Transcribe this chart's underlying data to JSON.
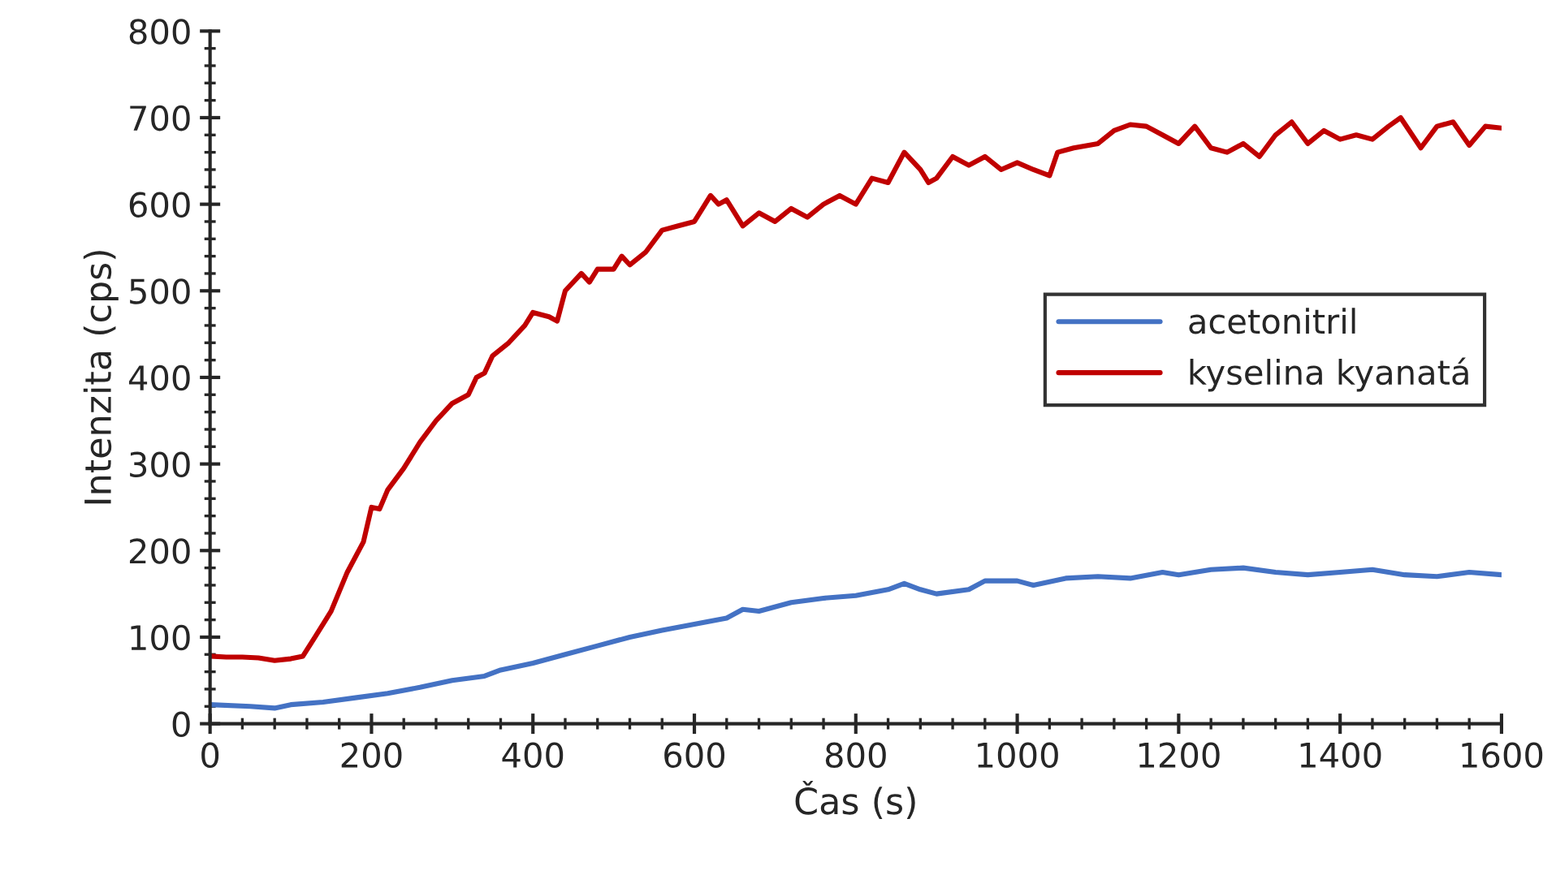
{
  "chart_data": {
    "type": "line",
    "xlabel": "Čas (s)",
    "ylabel": "Intenzita (cps)",
    "xlim": [
      0,
      1600
    ],
    "xticks": [
      0,
      200,
      400,
      600,
      800,
      1000,
      1200,
      1400,
      1600
    ],
    "ylim": [
      0,
      800
    ],
    "yticks": [
      0,
      100,
      200,
      300,
      400,
      500,
      600,
      700,
      800
    ],
    "grid": false,
    "legend": "right",
    "marker": "none",
    "line_style": "solid",
    "series": [
      {
        "name": "acetonitril",
        "color": "#4472c4",
        "x": [
          0,
          50,
          80,
          100,
          140,
          180,
          220,
          260,
          300,
          340,
          360,
          400,
          440,
          480,
          520,
          560,
          600,
          640,
          660,
          680,
          720,
          760,
          800,
          840,
          860,
          880,
          900,
          940,
          960,
          1000,
          1020,
          1060,
          1100,
          1140,
          1180,
          1200,
          1240,
          1280,
          1320,
          1360,
          1400,
          1440,
          1480,
          1520,
          1560,
          1600
        ],
        "values": [
          22,
          20,
          18,
          22,
          25,
          30,
          35,
          42,
          50,
          55,
          62,
          70,
          80,
          90,
          100,
          108,
          115,
          122,
          132,
          130,
          140,
          145,
          148,
          155,
          162,
          155,
          150,
          155,
          165,
          165,
          160,
          168,
          170,
          168,
          175,
          172,
          178,
          180,
          175,
          172,
          175,
          178,
          172,
          170,
          175,
          172
        ]
      },
      {
        "name": "kyselina kyanatá",
        "color": "#c00000",
        "x": [
          0,
          20,
          40,
          60,
          80,
          100,
          115,
          130,
          150,
          170,
          190,
          200,
          210,
          220,
          240,
          260,
          280,
          300,
          320,
          330,
          340,
          350,
          370,
          390,
          400,
          420,
          430,
          440,
          460,
          470,
          480,
          500,
          510,
          520,
          540,
          560,
          580,
          600,
          620,
          630,
          640,
          660,
          680,
          700,
          720,
          740,
          760,
          780,
          800,
          820,
          840,
          860,
          880,
          890,
          900,
          920,
          940,
          960,
          980,
          1000,
          1020,
          1040,
          1050,
          1070,
          1100,
          1120,
          1140,
          1160,
          1180,
          1200,
          1220,
          1240,
          1260,
          1280,
          1300,
          1320,
          1340,
          1360,
          1380,
          1400,
          1420,
          1440,
          1460,
          1475,
          1500,
          1520,
          1540,
          1560,
          1580,
          1600
        ],
        "values": [
          78,
          77,
          77,
          76,
          73,
          75,
          78,
          100,
          130,
          175,
          210,
          250,
          248,
          270,
          295,
          325,
          350,
          370,
          380,
          400,
          405,
          425,
          440,
          460,
          475,
          470,
          465,
          500,
          520,
          510,
          525,
          525,
          540,
          530,
          545,
          570,
          575,
          580,
          610,
          600,
          605,
          575,
          590,
          580,
          595,
          585,
          600,
          610,
          600,
          630,
          625,
          660,
          640,
          625,
          630,
          655,
          645,
          655,
          640,
          648,
          640,
          633,
          660,
          665,
          670,
          685,
          692,
          690,
          680,
          670,
          690,
          665,
          660,
          670,
          655,
          680,
          695,
          670,
          685,
          675,
          680,
          675,
          690,
          700,
          665,
          690,
          695,
          668,
          690,
          688
        ]
      }
    ]
  }
}
